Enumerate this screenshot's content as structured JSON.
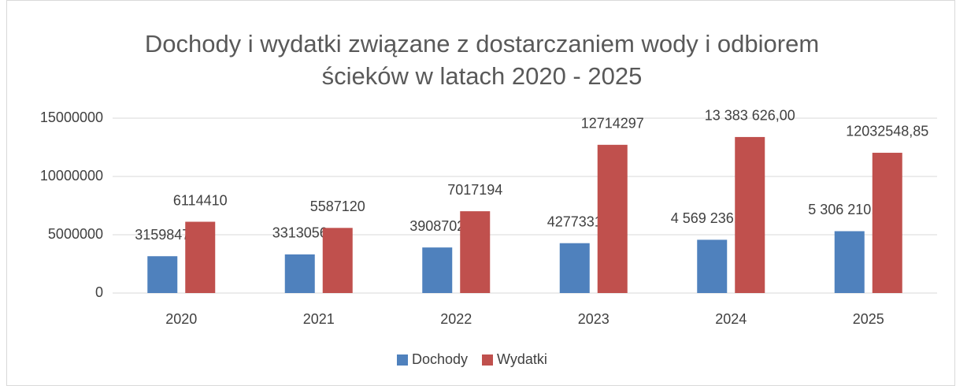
{
  "chart_data": {
    "type": "bar",
    "title": [
      "Dochody i wydatki związane z  dostarczaniem wody i odbiorem",
      "ścieków w latach 2020 - 2025"
    ],
    "categories": [
      "2020",
      "2021",
      "2022",
      "2023",
      "2024",
      "2025"
    ],
    "series": [
      {
        "name": "Dochody",
        "color": "#4f81bd",
        "values": [
          3159847,
          3313056,
          3908702,
          4277331,
          4569236,
          5306210.65
        ],
        "value_labels": [
          "3159847",
          "3313056",
          "3908702",
          "4277331",
          "4 569 236,00",
          "5 306 210,65"
        ]
      },
      {
        "name": "Wydatki",
        "color": "#c0504d",
        "values": [
          6114410,
          5587120,
          7017194,
          12714297,
          13383626,
          12032548.85
        ],
        "value_labels": [
          "6114410",
          "5587120",
          "7017194",
          "12714297",
          "13 383 626,00",
          "12032548,85"
        ]
      }
    ],
    "ylim": [
      0,
      15000000
    ],
    "yticks": [
      0,
      5000000,
      10000000,
      15000000
    ],
    "grid": true,
    "legend": "bottom"
  }
}
